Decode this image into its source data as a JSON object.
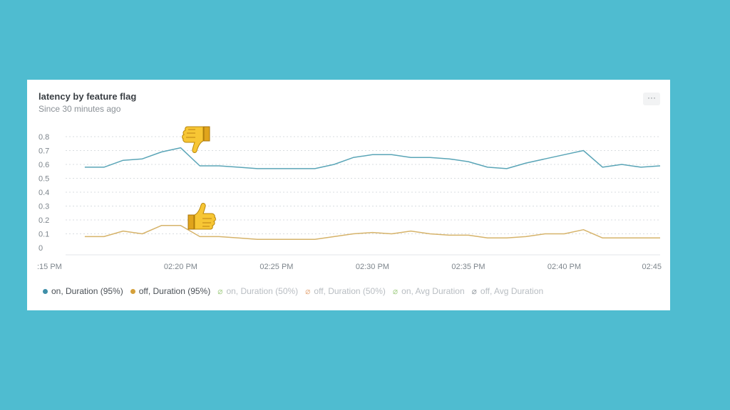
{
  "card": {
    "title": "latency by feature flag",
    "subtitle": "Since 30 minutes ago",
    "menu_label": "···"
  },
  "annotations": {
    "thumbs_down_icon": "thumbs-down-icon",
    "thumbs_up_icon": "thumbs-up-icon"
  },
  "chart_data": {
    "type": "line",
    "title": "latency by feature flag",
    "subtitle": "Since 30 minutes ago",
    "xlabel": "",
    "ylabel": "",
    "ylim": [
      0,
      0.8
    ],
    "y_ticks": [
      "0",
      "0.1",
      "0.2",
      "0.3",
      "0.4",
      "0.5",
      "0.6",
      "0.7",
      "0.8"
    ],
    "x_ticks": [
      ":15 PM",
      "02:20 PM",
      "02:25 PM",
      "02:30 PM",
      "02:35 PM",
      "02:40 PM",
      "02:45"
    ],
    "x_range": [
      "02:14",
      "02:45"
    ],
    "grid": true,
    "legend_position": "bottom-left",
    "x": [
      "02:15",
      "02:16",
      "02:17",
      "02:18",
      "02:19",
      "02:20",
      "02:21",
      "02:22",
      "02:23",
      "02:24",
      "02:25",
      "02:26",
      "02:27",
      "02:28",
      "02:29",
      "02:30",
      "02:31",
      "02:32",
      "02:33",
      "02:34",
      "02:35",
      "02:36",
      "02:37",
      "02:38",
      "02:39",
      "02:40",
      "02:41",
      "02:42",
      "02:43",
      "02:44",
      "02:45"
    ],
    "series": [
      {
        "name": "on, Duration (95%)",
        "color": "#5aa5b7",
        "values": [
          0.58,
          0.58,
          0.63,
          0.64,
          0.69,
          0.72,
          0.59,
          0.59,
          0.58,
          0.57,
          0.57,
          0.57,
          0.57,
          0.6,
          0.65,
          0.67,
          0.67,
          0.65,
          0.65,
          0.64,
          0.62,
          0.58,
          0.57,
          0.61,
          0.64,
          0.67,
          0.7,
          0.58,
          0.6,
          0.58,
          0.59
        ]
      },
      {
        "name": "off, Duration (95%)",
        "color": "#d6b36a",
        "values": [
          0.08,
          0.08,
          0.12,
          0.1,
          0.16,
          0.16,
          0.08,
          0.08,
          0.07,
          0.06,
          0.06,
          0.06,
          0.06,
          0.08,
          0.1,
          0.11,
          0.1,
          0.12,
          0.1,
          0.09,
          0.09,
          0.07,
          0.07,
          0.08,
          0.1,
          0.1,
          0.13,
          0.07,
          0.07,
          0.07,
          0.07
        ]
      }
    ]
  },
  "legend": [
    {
      "label": "on, Duration (95%)",
      "color": "#3f8fa8",
      "enabled": true
    },
    {
      "label": "off, Duration (95%)",
      "color": "#d5a03a",
      "enabled": true
    },
    {
      "label": "on, Duration (50%)",
      "color": "#a9d18e",
      "enabled": false
    },
    {
      "label": "off, Duration (50%)",
      "color": "#e8b28a",
      "enabled": false
    },
    {
      "label": "on, Avg Duration",
      "color": "#a9d18e",
      "enabled": false
    },
    {
      "label": "off, Avg Duration",
      "color": "#9aa0a6",
      "enabled": false
    }
  ]
}
